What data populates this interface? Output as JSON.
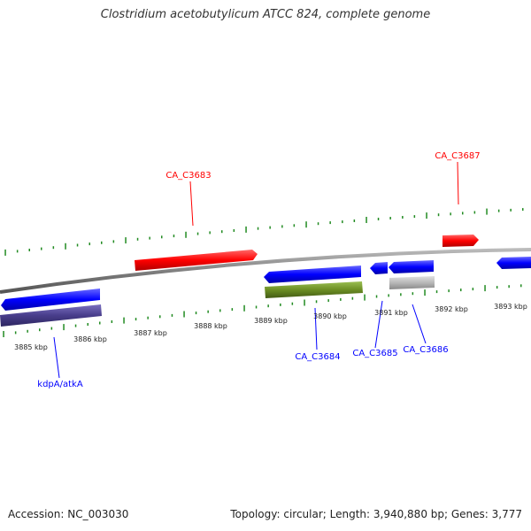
{
  "title": "Clostridium acetobutylicum ATCC 824, complete genome",
  "footer": {
    "accession": "Accession: NC_003030",
    "summary": "Topology: circular; Length: 3,940,880 bp; Genes: 3,777"
  },
  "colors": {
    "forward_cds": "#ff0000",
    "reverse_cds": "#0000ff",
    "backbone": "#808080",
    "ticks": "#228b22",
    "rna": "#6b8e23",
    "protein": "#483d8b",
    "other": "#b0b0b0"
  },
  "scale_labels": [
    "3885 kbp",
    "3886 kbp",
    "3887 kbp",
    "3888 kbp",
    "3889 kbp",
    "3890 kbp",
    "3891 kbp",
    "3892 kbp",
    "3893 kbp"
  ],
  "gene_labels": {
    "ca_c3683": "CA_C3683",
    "ca_c3687": "CA_C3687",
    "ca_c3684": "CA_C3684",
    "ca_c3685": "CA_C3685",
    "ca_c3686": "CA_C3686",
    "kdpa": "kdpA/atkA"
  }
}
